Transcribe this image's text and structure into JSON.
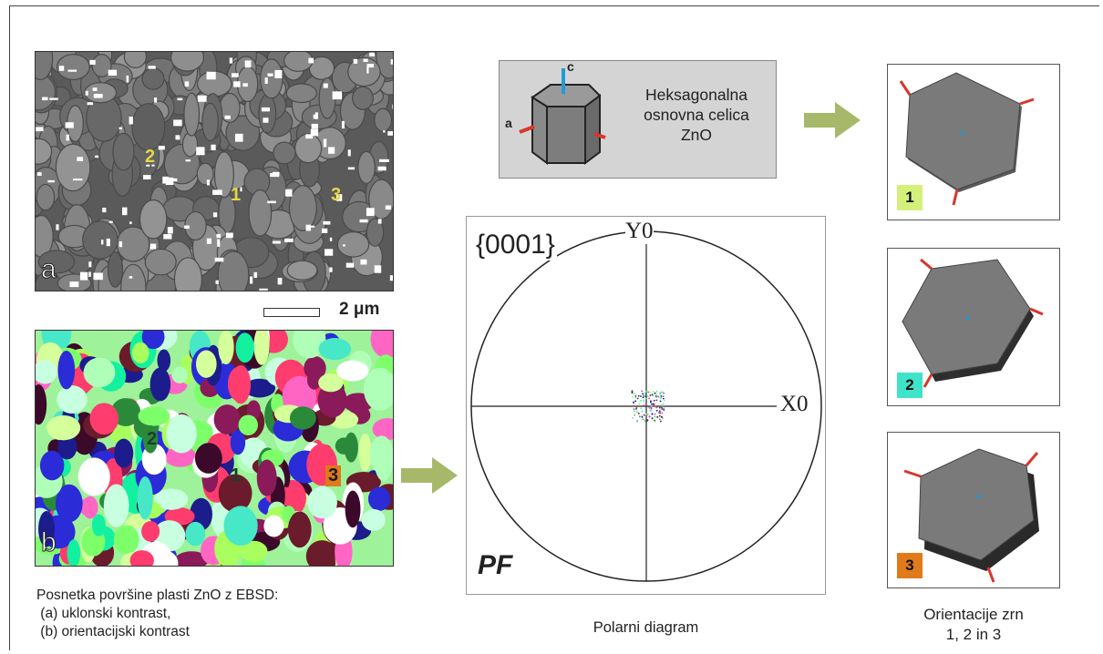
{
  "panel_a": {
    "letter": "a",
    "grain_labels": [
      "2",
      "1",
      "3"
    ]
  },
  "panel_b": {
    "letter": "b",
    "grain_labels": [
      "2",
      "1",
      "3"
    ]
  },
  "scale_bar": {
    "label": "2 μm"
  },
  "left_caption": {
    "line1": "Posnetka površine plasti ZnO z EBSD:",
    "line2": " (a) uklonski kontrast,",
    "line3": " (b) orientacijski kontrast"
  },
  "unit_cell": {
    "axis_c": "c",
    "axis_a": "a",
    "text_line1": "Heksagonalna",
    "text_line2": "osnovna celica",
    "text_line3": "ZnO"
  },
  "pole_figure": {
    "plane": "{0001}",
    "y_axis": "Y0",
    "x_axis": "X0",
    "tag": "PF",
    "caption": "Polarni diagram"
  },
  "orientations": {
    "badges": [
      "1",
      "2",
      "3"
    ],
    "badge_colors": [
      "#d4f07a",
      "#3fe3c8",
      "#e07a1a"
    ],
    "caption_line1": "Orientacije zrn",
    "caption_line2": "1, 2 in 3"
  },
  "colors": {
    "arrow": "#a8b86a",
    "axis_tick": "#d9362b",
    "c_axis": "#1e9bd7",
    "crystal": "#7a7a7a"
  }
}
